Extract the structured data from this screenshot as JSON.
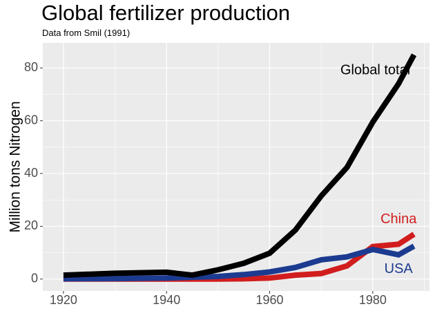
{
  "chart_data": {
    "type": "line",
    "title": "Global fertilizer production",
    "subtitle": "Data from Smil (1991)",
    "xlabel": "",
    "ylabel": "Million tons Nitrogen",
    "xlim": [
      1916,
      1991
    ],
    "ylim": [
      -4.5,
      89.5
    ],
    "x_ticks": [
      1920,
      1940,
      1960,
      1980
    ],
    "y_ticks": [
      0,
      20,
      40,
      60,
      80
    ],
    "grid": true,
    "legend": "direct labels",
    "background": "#ebebeb",
    "series": [
      {
        "name": "Global total",
        "color": "#000000",
        "x": [
          1920,
          1930,
          1940,
          1945,
          1950,
          1955,
          1960,
          1965,
          1970,
          1975,
          1980,
          1985,
          1988
        ],
        "values": [
          1.5,
          2.2,
          2.6,
          1.5,
          3.5,
          6.0,
          9.8,
          18.6,
          31.5,
          42.3,
          59.5,
          74.0,
          85.0
        ]
      },
      {
        "name": "USA",
        "color": "#1c3b90",
        "x": [
          1920,
          1930,
          1940,
          1950,
          1955,
          1960,
          1965,
          1970,
          1975,
          1980,
          1985,
          1988
        ],
        "values": [
          0.1,
          0.2,
          0.4,
          1.0,
          1.7,
          2.7,
          4.4,
          7.3,
          8.4,
          11.2,
          9.2,
          12.5
        ]
      },
      {
        "name": "China",
        "color": "#d11d1d",
        "x": [
          1920,
          1930,
          1940,
          1950,
          1955,
          1960,
          1965,
          1970,
          1975,
          1980,
          1985,
          1988
        ],
        "values": [
          0.0,
          0.0,
          0.0,
          0.0,
          0.1,
          0.4,
          1.5,
          2.1,
          5.0,
          12.3,
          13.2,
          17.0
        ]
      }
    ]
  }
}
